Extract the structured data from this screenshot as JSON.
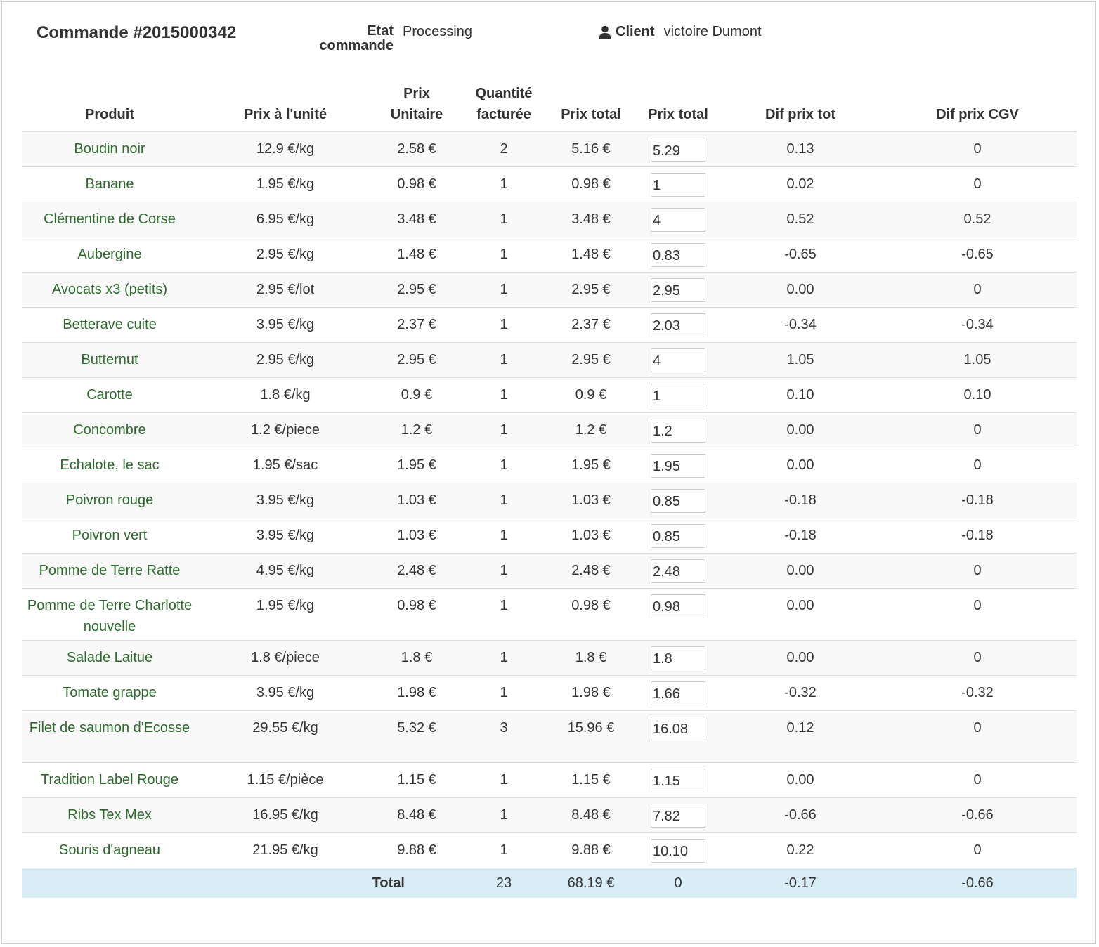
{
  "header": {
    "order_title": "Commande #2015000342",
    "etat_label_line1": "Etat",
    "etat_label_line2": "commande",
    "etat_value": "Processing",
    "client_label": "Client",
    "client_value": "victoire Dumont",
    "client_icon": "user-icon"
  },
  "table": {
    "columns": {
      "produit": "Produit",
      "prix_unite": "Prix à l'unité",
      "prix_unitaire_line1": "Prix",
      "prix_unitaire_line2": "Unitaire",
      "quantite_line1": "Quantité",
      "quantite_line2": "facturée",
      "prix_total": "Prix total",
      "prix_total_edit": "Prix total",
      "dif_prix_tot": "Dif prix tot",
      "dif_prix_cgv": "Dif prix CGV"
    },
    "rows": [
      {
        "produit": "Boudin noir",
        "prix_unite": "12.9 €/kg",
        "prix_unitaire": "2.58 €",
        "quantite": "2",
        "prix_total": "5.16 €",
        "input": "5.29",
        "dif_tot": "0.13",
        "dif_cgv": "0"
      },
      {
        "produit": "Banane",
        "prix_unite": "1.95 €/kg",
        "prix_unitaire": "0.98 €",
        "quantite": "1",
        "prix_total": "0.98 €",
        "input": "1",
        "dif_tot": "0.02",
        "dif_cgv": "0"
      },
      {
        "produit": "Clémentine de Corse",
        "prix_unite": "6.95 €/kg",
        "prix_unitaire": "3.48 €",
        "quantite": "1",
        "prix_total": "3.48 €",
        "input": "4",
        "dif_tot": "0.52",
        "dif_cgv": "0.52"
      },
      {
        "produit": "Aubergine",
        "prix_unite": "2.95 €/kg",
        "prix_unitaire": "1.48 €",
        "quantite": "1",
        "prix_total": "1.48 €",
        "input": "0.83",
        "dif_tot": "-0.65",
        "dif_cgv": "-0.65"
      },
      {
        "produit": "Avocats x3 (petits)",
        "prix_unite": "2.95 €/lot",
        "prix_unitaire": "2.95 €",
        "quantite": "1",
        "prix_total": "2.95 €",
        "input": "2.95",
        "dif_tot": "0.00",
        "dif_cgv": "0"
      },
      {
        "produit": "Betterave cuite",
        "prix_unite": "3.95 €/kg",
        "prix_unitaire": "2.37 €",
        "quantite": "1",
        "prix_total": "2.37 €",
        "input": "2.03",
        "dif_tot": "-0.34",
        "dif_cgv": "-0.34"
      },
      {
        "produit": "Butternut",
        "prix_unite": "2.95 €/kg",
        "prix_unitaire": "2.95 €",
        "quantite": "1",
        "prix_total": "2.95 €",
        "input": "4",
        "dif_tot": "1.05",
        "dif_cgv": "1.05"
      },
      {
        "produit": "Carotte",
        "prix_unite": "1.8 €/kg",
        "prix_unitaire": "0.9 €",
        "quantite": "1",
        "prix_total": "0.9 €",
        "input": "1",
        "dif_tot": "0.10",
        "dif_cgv": "0.10"
      },
      {
        "produit": "Concombre",
        "prix_unite": "1.2 €/piece",
        "prix_unitaire": "1.2 €",
        "quantite": "1",
        "prix_total": "1.2 €",
        "input": "1.2",
        "dif_tot": "0.00",
        "dif_cgv": "0"
      },
      {
        "produit": "Echalote, le sac",
        "prix_unite": "1.95 €/sac",
        "prix_unitaire": "1.95 €",
        "quantite": "1",
        "prix_total": "1.95 €",
        "input": "1.95",
        "dif_tot": "0.00",
        "dif_cgv": "0"
      },
      {
        "produit": "Poivron rouge",
        "prix_unite": "3.95 €/kg",
        "prix_unitaire": "1.03 €",
        "quantite": "1",
        "prix_total": "1.03 €",
        "input": "0.85",
        "dif_tot": "-0.18",
        "dif_cgv": "-0.18"
      },
      {
        "produit": "Poivron vert",
        "prix_unite": "3.95 €/kg",
        "prix_unitaire": "1.03 €",
        "quantite": "1",
        "prix_total": "1.03 €",
        "input": "0.85",
        "dif_tot": "-0.18",
        "dif_cgv": "-0.18"
      },
      {
        "produit": "Pomme de Terre Ratte",
        "prix_unite": "4.95 €/kg",
        "prix_unitaire": "2.48 €",
        "quantite": "1",
        "prix_total": "2.48 €",
        "input": "2.48",
        "dif_tot": "0.00",
        "dif_cgv": "0"
      },
      {
        "produit": "Pomme de Terre Charlotte nouvelle",
        "prix_unite": "1.95 €/kg",
        "prix_unitaire": "0.98 €",
        "quantite": "1",
        "prix_total": "0.98 €",
        "input": "0.98",
        "dif_tot": "0.00",
        "dif_cgv": "0"
      },
      {
        "produit": "Salade Laitue",
        "prix_unite": "1.8 €/piece",
        "prix_unitaire": "1.8 €",
        "quantite": "1",
        "prix_total": "1.8 €",
        "input": "1.8",
        "dif_tot": "0.00",
        "dif_cgv": "0"
      },
      {
        "produit": "Tomate grappe",
        "prix_unite": "3.95 €/kg",
        "prix_unitaire": "1.98 €",
        "quantite": "1",
        "prix_total": "1.98 €",
        "input": "1.66",
        "dif_tot": "-0.32",
        "dif_cgv": "-0.32"
      },
      {
        "produit": "Filet de saumon d'Ecosse",
        "prix_unite": "29.55 €/kg",
        "prix_unitaire": "5.32 €",
        "quantite": "3",
        "prix_total": "15.96 €",
        "input": "16.08",
        "dif_tot": "0.12",
        "dif_cgv": "0"
      },
      {
        "produit": "Tradition Label Rouge",
        "prix_unite": "1.15 €/pièce",
        "prix_unitaire": "1.15 €",
        "quantite": "1",
        "prix_total": "1.15 €",
        "input": "1.15",
        "dif_tot": "0.00",
        "dif_cgv": "0"
      },
      {
        "produit": "Ribs Tex Mex",
        "prix_unite": "16.95 €/kg",
        "prix_unitaire": "8.48 €",
        "quantite": "1",
        "prix_total": "8.48 €",
        "input": "7.82",
        "dif_tot": "-0.66",
        "dif_cgv": "-0.66"
      },
      {
        "produit": "Souris d'agneau",
        "prix_unite": "21.95 €/kg",
        "prix_unitaire": "9.88 €",
        "quantite": "1",
        "prix_total": "9.88 €",
        "input": "10.10",
        "dif_tot": "0.22",
        "dif_cgv": "0"
      }
    ],
    "total": {
      "label": "Total",
      "quantite": "23",
      "prix_total": "68.19 €",
      "prix_total_edit": "0",
      "dif_tot": "-0.17",
      "dif_cgv": "-0.66"
    }
  },
  "colors": {
    "product_link": "#2d6b2d",
    "total_row_bg": "#d9edf7",
    "striped_row_bg": "#f9f9f9",
    "border": "#dddddd"
  }
}
